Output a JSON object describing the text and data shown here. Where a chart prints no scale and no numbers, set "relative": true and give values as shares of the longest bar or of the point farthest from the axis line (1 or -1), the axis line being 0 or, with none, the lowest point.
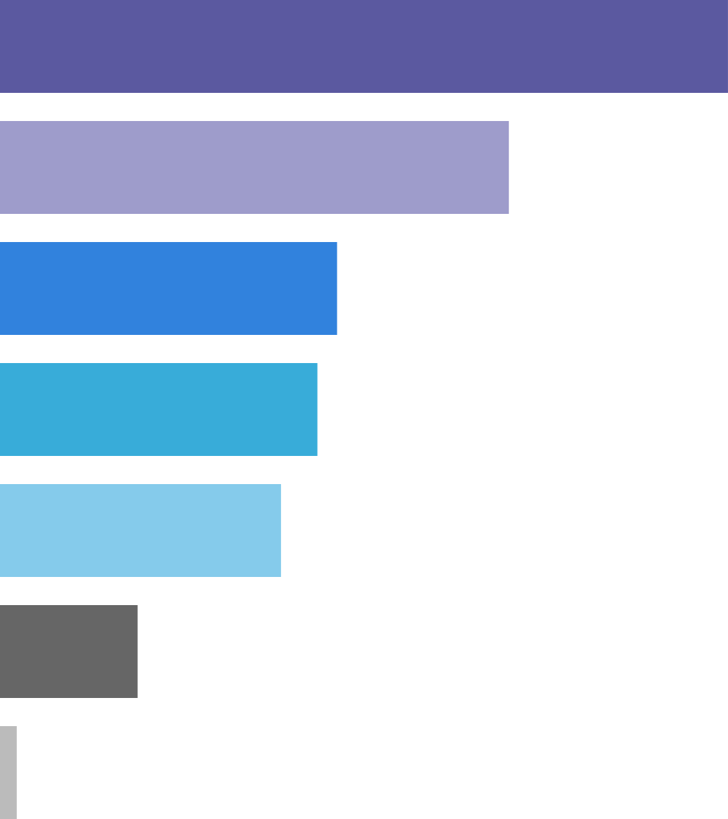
{
  "chart_data": {
    "type": "bar",
    "orientation": "horizontal",
    "relative": true,
    "categories": [
      null,
      null,
      null,
      null,
      null,
      null,
      null
    ],
    "values": [
      1,
      0.699,
      0.463,
      0.436,
      0.386,
      0.189,
      0.023
    ],
    "colors": [
      "#5b59a0",
      "#9e9ccb",
      "#3182dd",
      "#38acd9",
      "#85cbeb",
      "#666666",
      "#bbbbbb"
    ]
  }
}
